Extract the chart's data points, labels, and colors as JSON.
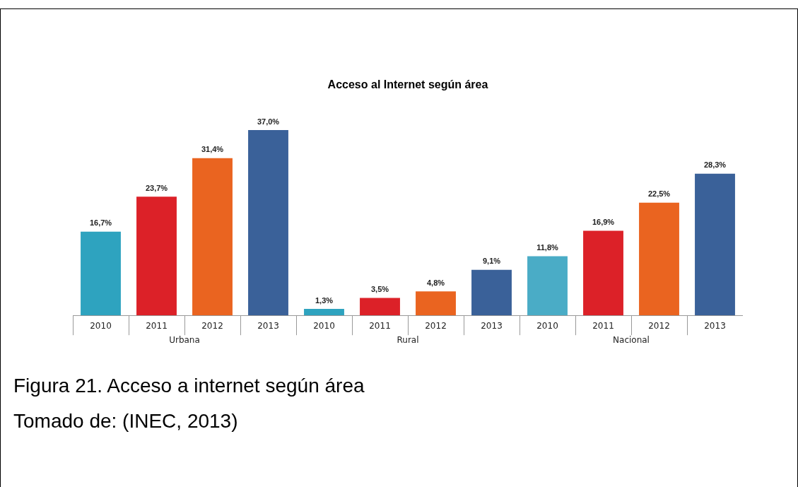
{
  "chart_data": [
    {
      "type": "bar",
      "xlabel": "Urbana",
      "categories": [
        "2010",
        "2011",
        "2012",
        "2013"
      ],
      "values": [
        16.7,
        23.7,
        31.4,
        37.0
      ],
      "value_labels": [
        "16,7%",
        "23,7%",
        "31,4%",
        "37,0%"
      ],
      "colors": [
        "#2ea3bf",
        "#dc2128",
        "#ea6420",
        "#3a6199"
      ]
    },
    {
      "type": "bar",
      "title": "Acceso al Internet según área",
      "xlabel": "Rural",
      "categories": [
        "2010",
        "2011",
        "2012",
        "2013"
      ],
      "values": [
        1.3,
        3.5,
        4.8,
        9.1
      ],
      "value_labels": [
        "1,3%",
        "3,5%",
        "4,8%",
        "9,1%"
      ],
      "colors": [
        "#2ea3bf",
        "#dc2128",
        "#ea6420",
        "#3a6199"
      ]
    },
    {
      "type": "bar",
      "xlabel": "Nacional",
      "categories": [
        "2010",
        "2011",
        "2012",
        "2013"
      ],
      "values": [
        11.8,
        16.9,
        22.5,
        28.3
      ],
      "value_labels": [
        "11,8%",
        "16,9%",
        "22,5%",
        "28,3%"
      ],
      "colors": [
        "#4aacc6",
        "#dc2128",
        "#ea6420",
        "#3a6199"
      ],
      "annotations": [
        "Figura 21. Acceso a internet según área",
        "Tomado de: (INEC, 2013)"
      ]
    }
  ]
}
